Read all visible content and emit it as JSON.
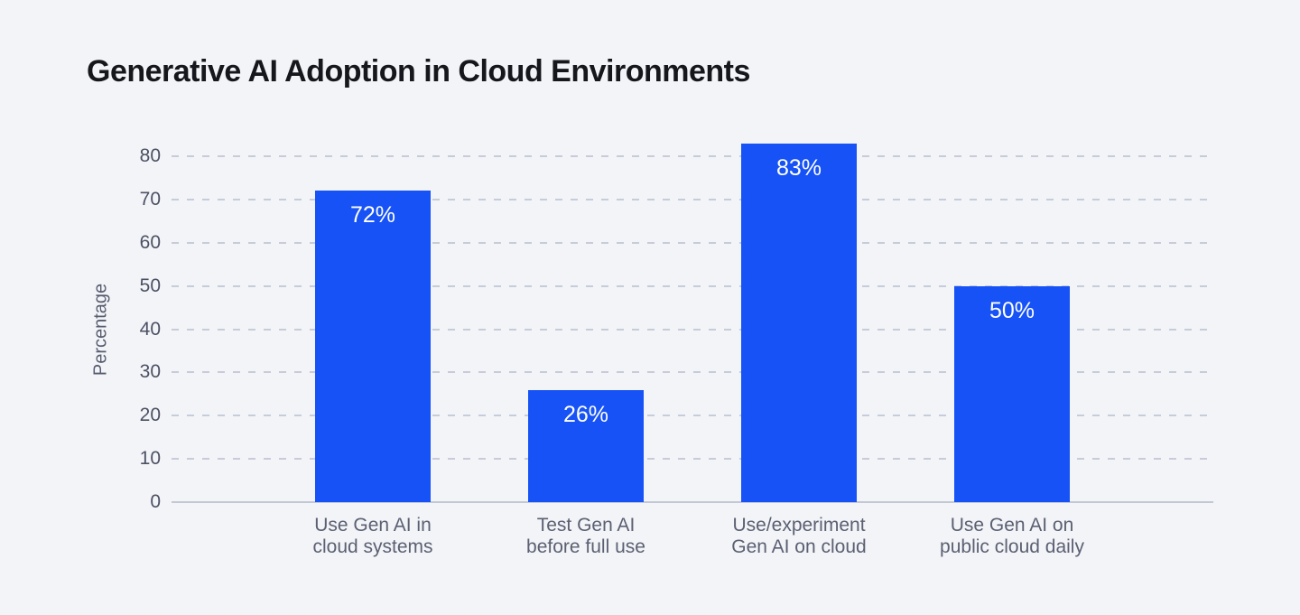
{
  "page": {
    "background_color": "#f3f4f8"
  },
  "chart_data": {
    "type": "bar",
    "title": "Generative AI Adoption in Cloud Environments",
    "xlabel": "",
    "ylabel": "Percentage",
    "categories": [
      "Use Gen AI in\ncloud systems",
      "Test Gen AI\nbefore full use",
      "Use/experiment\nGen AI on cloud",
      "Use Gen AI on\npublic cloud daily"
    ],
    "values": [
      72,
      26,
      83,
      50
    ],
    "value_labels": [
      "72%",
      "26%",
      "83%",
      "50%"
    ],
    "yticks": [
      0,
      10,
      20,
      30,
      40,
      50,
      60,
      70,
      80
    ],
    "ylim": [
      0,
      87
    ],
    "grid": "horizontal-dashed",
    "legend": "none",
    "bar_color": "#1652f5",
    "value_label_color": "#ffffff"
  }
}
